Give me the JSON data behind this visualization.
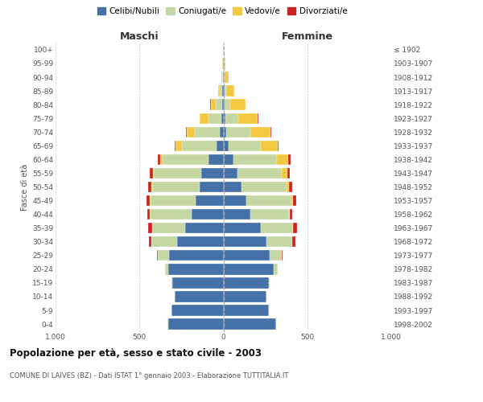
{
  "age_groups": [
    "0-4",
    "5-9",
    "10-14",
    "15-19",
    "20-24",
    "25-29",
    "30-34",
    "35-39",
    "40-44",
    "45-49",
    "50-54",
    "55-59",
    "60-64",
    "65-69",
    "70-74",
    "75-79",
    "80-84",
    "85-89",
    "90-94",
    "95-99",
    "100+"
  ],
  "birth_years": [
    "1998-2002",
    "1993-1997",
    "1988-1992",
    "1983-1987",
    "1978-1982",
    "1973-1977",
    "1968-1972",
    "1963-1967",
    "1958-1962",
    "1953-1957",
    "1948-1952",
    "1943-1947",
    "1938-1942",
    "1933-1937",
    "1928-1932",
    "1923-1927",
    "1918-1922",
    "1913-1917",
    "1908-1912",
    "1903-1907",
    "≤ 1902"
  ],
  "maschi": {
    "celibi": [
      330,
      310,
      290,
      305,
      330,
      325,
      275,
      230,
      190,
      165,
      140,
      130,
      90,
      40,
      20,
      10,
      5,
      5,
      3,
      2,
      2
    ],
    "coniugati": [
      1,
      1,
      2,
      5,
      18,
      65,
      155,
      195,
      245,
      270,
      285,
      285,
      270,
      205,
      150,
      80,
      40,
      15,
      5,
      2,
      0
    ],
    "vedovi": [
      0,
      0,
      0,
      0,
      0,
      0,
      1,
      1,
      2,
      3,
      4,
      7,
      18,
      40,
      50,
      50,
      30,
      12,
      5,
      1,
      0
    ],
    "divorziati": [
      0,
      0,
      0,
      1,
      2,
      4,
      14,
      22,
      18,
      20,
      20,
      18,
      14,
      4,
      4,
      3,
      2,
      0,
      0,
      0,
      0
    ]
  },
  "femmine": {
    "nubili": [
      315,
      270,
      255,
      270,
      300,
      275,
      255,
      225,
      160,
      135,
      110,
      85,
      58,
      30,
      18,
      10,
      8,
      6,
      4,
      3,
      2
    ],
    "coniugate": [
      1,
      1,
      2,
      4,
      22,
      72,
      155,
      190,
      230,
      270,
      268,
      265,
      260,
      195,
      145,
      80,
      35,
      12,
      4,
      2,
      0
    ],
    "vedove": [
      0,
      0,
      0,
      0,
      0,
      1,
      2,
      2,
      4,
      8,
      15,
      30,
      68,
      100,
      118,
      115,
      88,
      45,
      22,
      5,
      1
    ],
    "divorziate": [
      0,
      0,
      0,
      0,
      2,
      5,
      16,
      22,
      18,
      20,
      16,
      18,
      14,
      4,
      3,
      2,
      2,
      0,
      0,
      0,
      0
    ]
  },
  "colors": {
    "celibi": "#4472a8",
    "coniugati": "#c5d8a4",
    "vedovi": "#f5c842",
    "divorziati": "#cc2222"
  },
  "legend_labels": [
    "Celibi/Nubili",
    "Coniugati/e",
    "Vedovi/e",
    "Divorziati/e"
  ],
  "title_main": "Popolazione per età, sesso e stato civile - 2003",
  "title_sub": "COMUNE DI LAIVES (BZ) - Dati ISTAT 1° gennaio 2003 - Elaborazione TUTTITALIA.IT",
  "label_maschi": "Maschi",
  "label_femmine": "Femmine",
  "ylabel_left": "Fasce di età",
  "xlim": 1000,
  "background_color": "#ffffff"
}
